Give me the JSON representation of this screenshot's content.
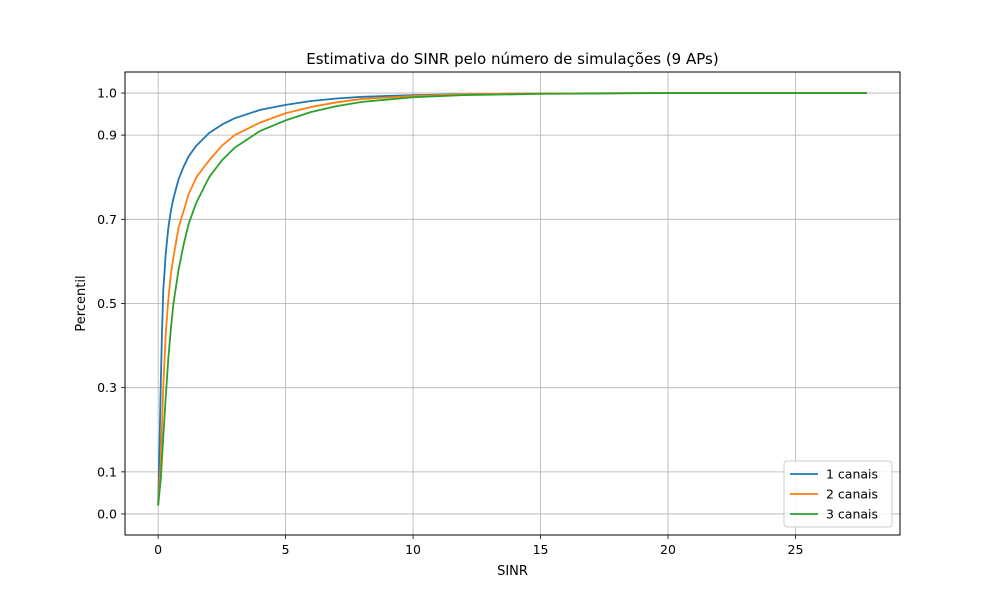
{
  "chart_data": {
    "type": "line",
    "title": "Estimativa do SINR pelo número de simulações (9 APs)",
    "xlabel": "SINR",
    "ylabel": "Percentil",
    "xlim": [
      -1.3,
      29.1
    ],
    "ylim": [
      -0.05,
      1.05
    ],
    "xticks": [
      0,
      5,
      10,
      15,
      20,
      25
    ],
    "yticks": [
      0.0,
      0.1,
      0.3,
      0.5,
      0.7,
      0.9,
      1.0
    ],
    "ytick_labels": [
      "0.0",
      "0.1",
      "0.3",
      "0.5",
      "0.7",
      "0.9",
      "1.0"
    ],
    "grid": true,
    "legend_position": "lower-right",
    "series": [
      {
        "name": "1 canais",
        "color": "#1f77b4",
        "x": [
          0,
          0.05,
          0.1,
          0.15,
          0.2,
          0.3,
          0.4,
          0.5,
          0.6,
          0.8,
          1.0,
          1.2,
          1.5,
          2.0,
          2.5,
          3.0,
          4.0,
          5.0,
          6.0,
          7.0,
          8.0,
          10.0,
          12.0,
          15.0,
          20.0,
          25.0,
          27.8
        ],
        "y": [
          0.02,
          0.15,
          0.3,
          0.43,
          0.53,
          0.62,
          0.68,
          0.72,
          0.75,
          0.795,
          0.825,
          0.85,
          0.875,
          0.905,
          0.925,
          0.94,
          0.96,
          0.972,
          0.981,
          0.987,
          0.991,
          0.995,
          0.997,
          0.999,
          1.0,
          1.0,
          1.0
        ]
      },
      {
        "name": "2 canais",
        "color": "#ff7f0e",
        "x": [
          0,
          0.1,
          0.2,
          0.3,
          0.4,
          0.5,
          0.6,
          0.8,
          1.0,
          1.2,
          1.5,
          2.0,
          2.5,
          3.0,
          4.0,
          5.0,
          6.0,
          7.0,
          8.0,
          10.0,
          12.0,
          15.0,
          20.0,
          25.0,
          27.8
        ],
        "y": [
          0.02,
          0.12,
          0.3,
          0.43,
          0.51,
          0.57,
          0.61,
          0.68,
          0.72,
          0.76,
          0.8,
          0.84,
          0.875,
          0.9,
          0.93,
          0.952,
          0.967,
          0.978,
          0.986,
          0.993,
          0.997,
          0.999,
          1.0,
          1.0,
          1.0
        ]
      },
      {
        "name": "3 canais",
        "color": "#2ca02c",
        "x": [
          0,
          0.1,
          0.2,
          0.3,
          0.4,
          0.5,
          0.6,
          0.8,
          1.0,
          1.2,
          1.5,
          2.0,
          2.5,
          3.0,
          4.0,
          5.0,
          6.0,
          7.0,
          8.0,
          10.0,
          12.0,
          15.0,
          20.0,
          25.0,
          27.8
        ],
        "y": [
          0.02,
          0.08,
          0.18,
          0.28,
          0.37,
          0.44,
          0.5,
          0.58,
          0.64,
          0.69,
          0.74,
          0.8,
          0.84,
          0.87,
          0.91,
          0.935,
          0.955,
          0.969,
          0.979,
          0.99,
          0.995,
          0.998,
          1.0,
          1.0,
          1.0
        ]
      }
    ]
  }
}
